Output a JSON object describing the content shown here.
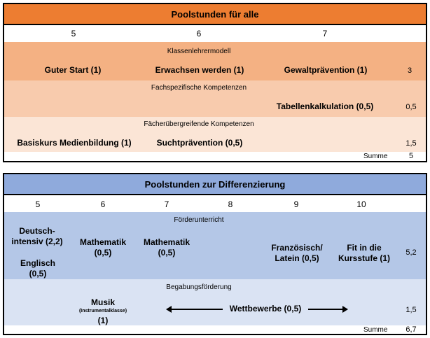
{
  "colors": {
    "header1": "#ED7D31",
    "band1_1": "#F4B183",
    "band1_2": "#F8CBAD",
    "band1_3": "#FBE5D6",
    "header2": "#8FAADC",
    "band2_1": "#B4C7E7",
    "band2_2": "#DAE3F3"
  },
  "table1": {
    "title": "Poolstunden für alle",
    "grades": [
      "5",
      "6",
      "7"
    ],
    "sections": [
      {
        "label": "Klassenlehrermodell",
        "items": [
          "Guter Start (1)",
          "Erwachsen werden (1)",
          "Gewaltprävention (1)"
        ],
        "total": "3"
      },
      {
        "label": "Fachspezifische Kompetenzen",
        "items": [
          "Tabellenkalkulation (0,5)"
        ],
        "total": "0,5"
      },
      {
        "label": "Fächerübergreifende Kompetenzen",
        "items": [
          "Basiskurs Medienbildung (1)",
          "Suchtprävention (0,5)"
        ],
        "total": "1,5"
      }
    ],
    "sum_label": "Summe",
    "sum_value": "5"
  },
  "table2": {
    "title": "Poolstunden zur Differenzierung",
    "grades": [
      "5",
      "6",
      "7",
      "8",
      "9",
      "10"
    ],
    "sections": [
      {
        "label": "Förderunterricht",
        "items": [
          "Deutsch-intensiv (2,2)",
          "Englisch (0,5)",
          "Mathematik (0,5)",
          "Mathematik (0,5)",
          "Französisch/ Latein (0,5)",
          "Fit in die Kursstufe (1)"
        ],
        "total": "5,2"
      },
      {
        "label": "Begabungsförderung",
        "musik": "Musik",
        "musik_note": "(Instrumentalklasse)",
        "musik_hours": "(1)",
        "wettbewerbe": "Wettbewerbe (0,5)",
        "total": "1,5"
      }
    ],
    "sum_label": "Summe",
    "sum_value": "6,7"
  }
}
